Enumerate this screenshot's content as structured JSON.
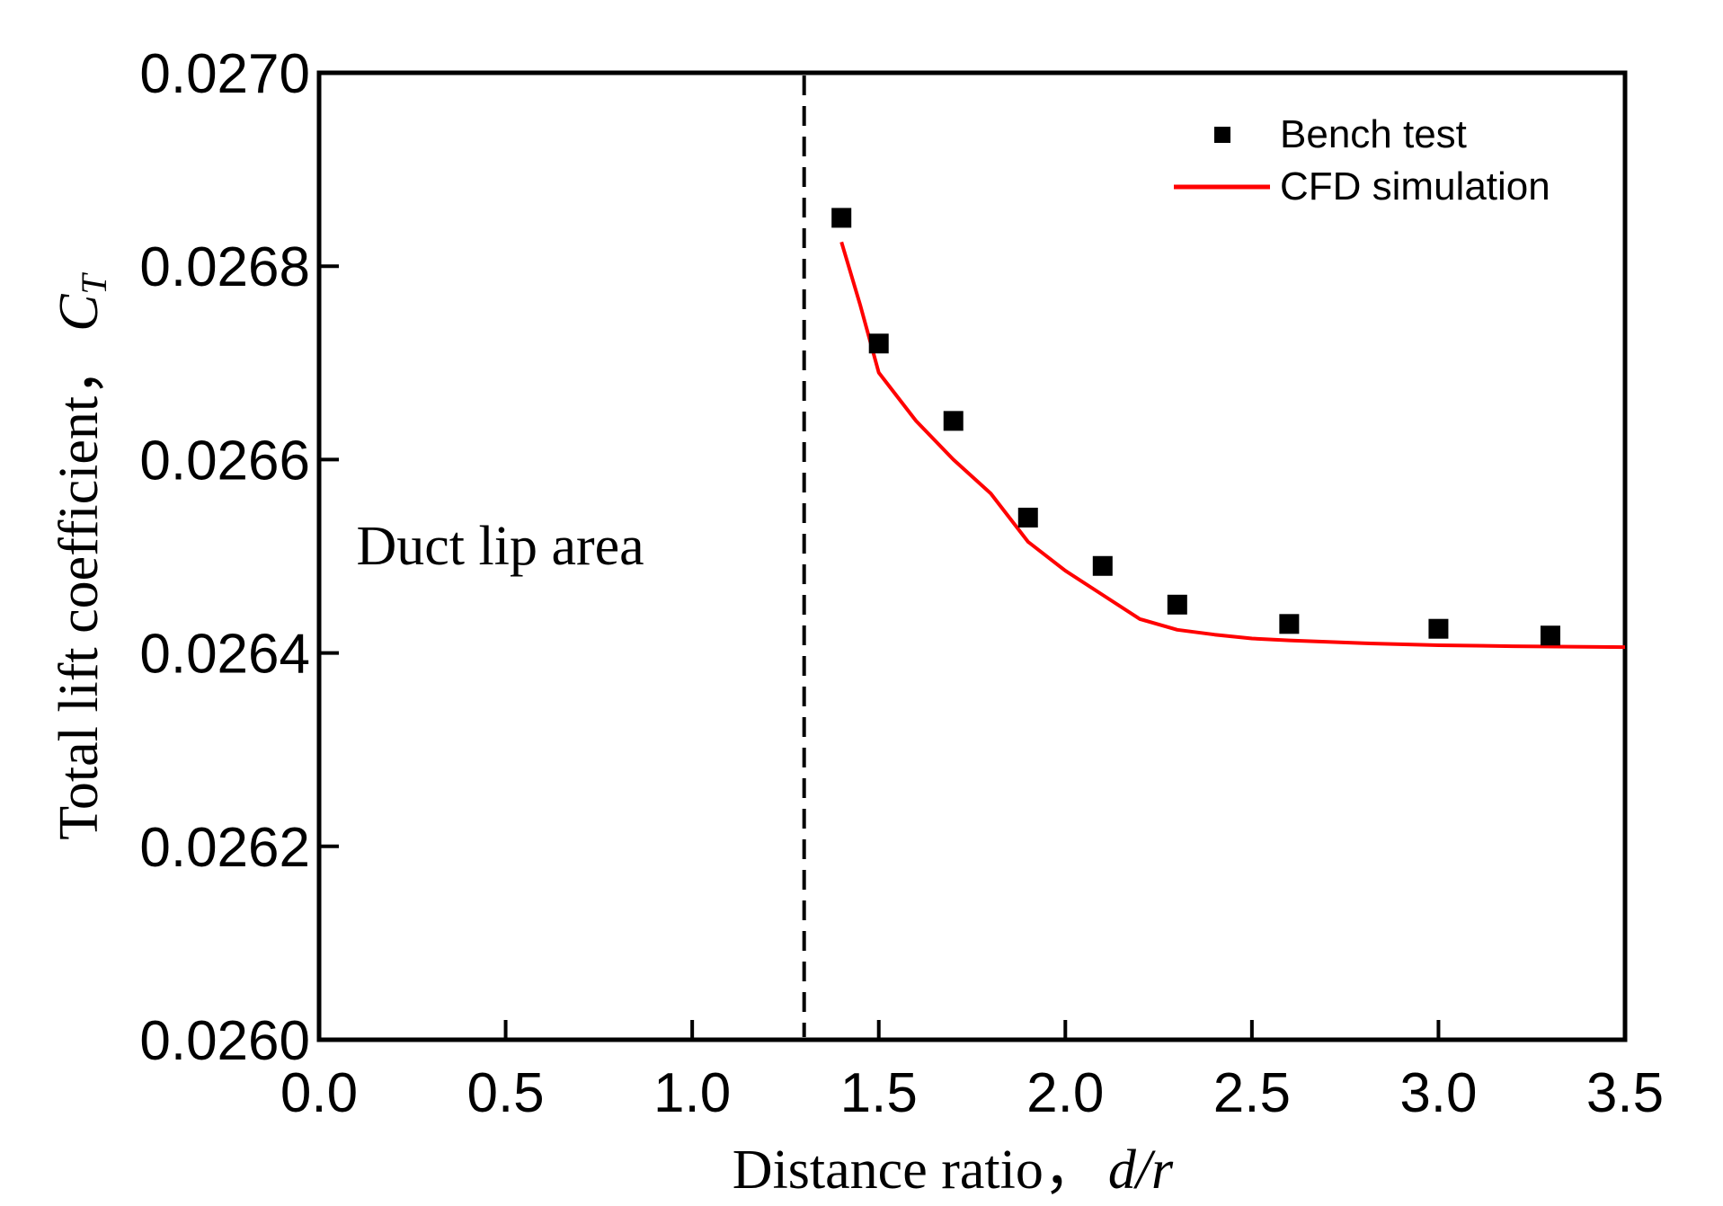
{
  "chart_data": {
    "type": "scatter+line",
    "title": "",
    "xlabel": "Distance ratio，",
    "xlabel_var": "d/r",
    "ylabel": "Total lift coefficient，",
    "ylabel_var": "C",
    "ylabel_sub": "T",
    "xlim": [
      0.0,
      3.5
    ],
    "ylim": [
      0.026,
      0.027
    ],
    "xticks": [
      0.0,
      0.5,
      1.0,
      1.5,
      2.0,
      2.5,
      3.0,
      3.5
    ],
    "xtick_labels": [
      "0.0",
      "0.5",
      "1.0",
      "1.5",
      "2.0",
      "2.5",
      "3.0",
      "3.5"
    ],
    "yticks": [
      0.026,
      0.0262,
      0.0264,
      0.0266,
      0.0268,
      0.027
    ],
    "ytick_labels": [
      "0.0260",
      "0.0262",
      "0.0264",
      "0.0266",
      "0.0268",
      "0.0270"
    ],
    "grid": false,
    "legend_position": "top-right",
    "series": [
      {
        "name": "Bench test",
        "kind": "scatter",
        "marker": "square",
        "color": "#000000",
        "x": [
          1.4,
          1.5,
          1.7,
          1.9,
          2.1,
          2.3,
          2.6,
          3.0,
          3.3
        ],
        "y": [
          0.02685,
          0.02672,
          0.02664,
          0.02654,
          0.02649,
          0.02645,
          0.02643,
          0.026425,
          0.026418
        ]
      },
      {
        "name": "CFD simulation",
        "kind": "line",
        "color": "#ff0000",
        "x": [
          1.4,
          1.45,
          1.5,
          1.6,
          1.7,
          1.8,
          1.9,
          2.0,
          2.1,
          2.2,
          2.3,
          2.4,
          2.5,
          2.6,
          2.8,
          3.0,
          3.2,
          3.5
        ],
        "y": [
          0.026825,
          0.02676,
          0.02669,
          0.02664,
          0.0266,
          0.026565,
          0.026515,
          0.026485,
          0.02646,
          0.026435,
          0.026424,
          0.026419,
          0.026415,
          0.026413,
          0.02641,
          0.026408,
          0.026407,
          0.026406
        ]
      }
    ],
    "annotations": [
      {
        "kind": "vline",
        "x": 1.3,
        "style": "dashed",
        "color": "#000000"
      },
      {
        "kind": "text",
        "text": "Duct lip area",
        "x": 0.1,
        "y": 0.02651
      }
    ]
  }
}
